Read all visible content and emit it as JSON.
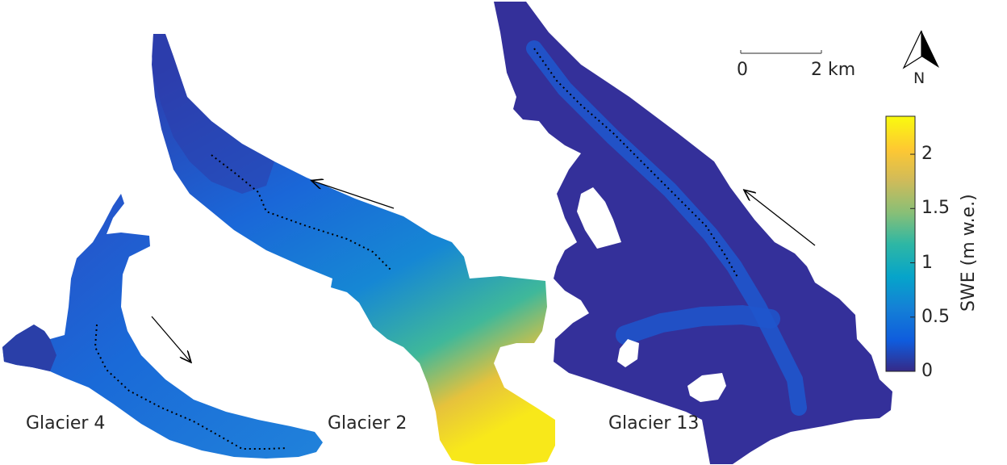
{
  "glaciers": [
    {
      "name": "Glacier 4"
    },
    {
      "name": "Glacier 2"
    },
    {
      "name": "Glacier 13"
    }
  ],
  "scale_bar": {
    "start_label": "0",
    "end_label": "2 km"
  },
  "north_arrow": {
    "label": "N"
  },
  "colorbar": {
    "label": "SWE (m w.e.)",
    "ticks": [
      "0",
      "0.5",
      "1",
      "1.5",
      "2"
    ],
    "range": [
      0,
      2.35
    ],
    "colors": [
      "#352a87",
      "#0f5cdd",
      "#1481d6",
      "#06a4ca",
      "#2eb7a4",
      "#87bf77",
      "#d1bb59",
      "#fec832",
      "#f9fb0e"
    ]
  },
  "icons": [
    "flow-direction-arrow",
    "north-arrow-icon",
    "centerline"
  ]
}
